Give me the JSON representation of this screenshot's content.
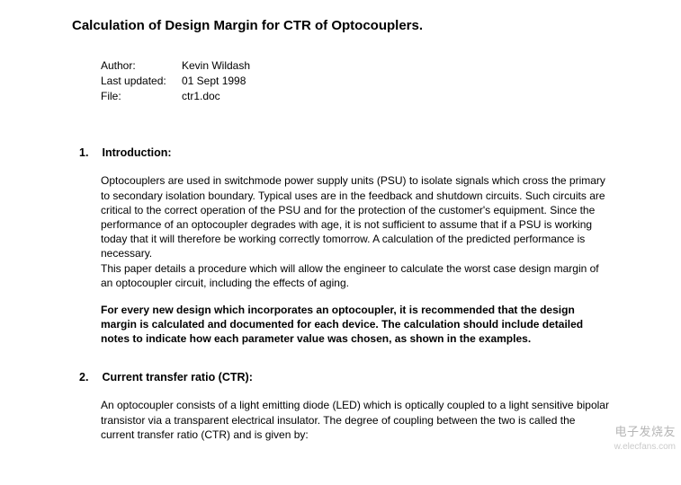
{
  "title": "Calculation of Design Margin for CTR of Optocouplers.",
  "meta": {
    "author_label": "Author:",
    "author_value": "Kevin Wildash",
    "updated_label": "Last updated:",
    "updated_value": "01 Sept 1998",
    "file_label": "File:",
    "file_value": "ctr1.doc"
  },
  "sections": {
    "s1": {
      "num": "1.",
      "heading": "Introduction:",
      "p1": "Optocouplers are used in switchmode power supply units (PSU) to isolate signals which cross the primary to secondary isolation boundary. Typical uses are in the feedback and shutdown circuits. Such circuits are critical to the correct operation of the PSU and for the protection of the customer's equipment. Since the performance of an optocoupler degrades with age, it is not sufficient to assume that if a PSU is working today that it will therefore be working correctly tomorrow. A calculation of the predicted performance is necessary.",
      "p2": "This paper details a procedure which will allow the engineer to calculate the worst case design margin of an optocoupler circuit, including the effects of aging.",
      "p3": "For every new design which incorporates an optocoupler, it is recommended that the design margin is calculated and documented for each device. The calculation should include detailed notes to indicate how each parameter value was chosen, as shown in the examples."
    },
    "s2": {
      "num": "2.",
      "heading": "Current transfer ratio (CTR):",
      "p1": "An optocoupler consists of a light emitting diode (LED) which is optically coupled to a light sensitive bipolar transistor via a transparent electrical insulator. The degree of coupling between the two is called the current transfer ratio (CTR) and is given by:"
    }
  },
  "watermark": {
    "main": "电子发烧友",
    "sub": "w.elecfans.com"
  }
}
